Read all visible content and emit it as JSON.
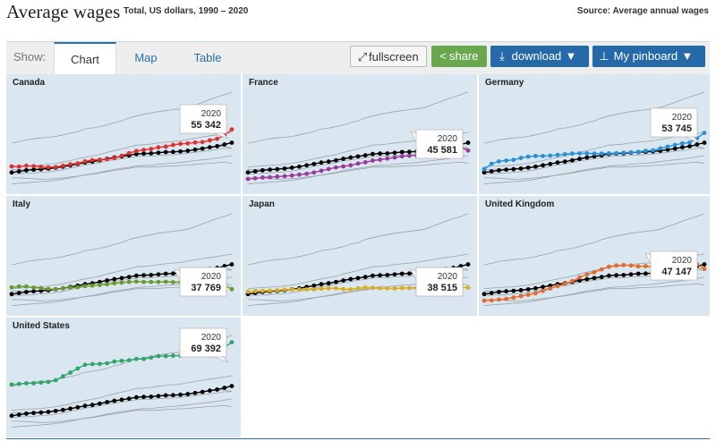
{
  "header": {
    "title": "Average wages",
    "subtitle": "Total, US dollars, 1990 – 2020",
    "source": "Source: Average annual wages"
  },
  "toolbar": {
    "show_label": "Show:",
    "tabs": [
      {
        "label": "Chart",
        "active": true
      },
      {
        "label": "Map",
        "active": false
      },
      {
        "label": "Table",
        "active": false
      }
    ],
    "fullscreen_label": "fullscreen",
    "share_label": "share",
    "download_label": "download",
    "pinboard_label": "My pinboard",
    "fullscreen_icon": "expand-arrows-icon",
    "share_icon": "share-nodes-icon",
    "download_icon": "download-arrow-icon",
    "pin_icon": "pushpin-icon",
    "dropdown_icon": "caret-down-icon"
  },
  "colors": {
    "oecd_line": "#000000",
    "background_lines": "#9aa3aa",
    "panel_bg": "#dae7f0",
    "canada": "#e0302f",
    "france": "#9b3a9b",
    "germany": "#2a8fd4",
    "italy": "#6b9a2c",
    "japan": "#d9ae1c",
    "united_kingdom": "#e56a2c",
    "united_states": "#2fa56c"
  },
  "chart_data": {
    "type": "line",
    "x": [
      1990,
      1991,
      1992,
      1993,
      1994,
      1995,
      1996,
      1997,
      1998,
      1999,
      2000,
      2001,
      2002,
      2003,
      2004,
      2005,
      2006,
      2007,
      2008,
      2009,
      2010,
      2011,
      2012,
      2013,
      2014,
      2015,
      2016,
      2017,
      2018,
      2019,
      2020
    ],
    "ylim": [
      28000,
      75000
    ],
    "benchmark": {
      "values": [
        35500,
        36000,
        36500,
        36800,
        37000,
        37300,
        37700,
        38200,
        38800,
        39400,
        40100,
        40500,
        41100,
        41800,
        42400,
        42900,
        43400,
        44000,
        44200,
        44300,
        44600,
        44900,
        45000,
        45200,
        45500,
        46000,
        46500,
        47100,
        47600,
        48400,
        49200
      ]
    },
    "background_series": [
      {
        "values": [
          49000,
          49700,
          50500,
          51000,
          51400,
          51700,
          52100,
          52800,
          53600,
          54400,
          55600,
          56000,
          56600,
          57400,
          58500,
          59300,
          60600,
          61500,
          62300,
          62900,
          63600,
          64000,
          64500,
          64800,
          65400,
          66600,
          67800,
          69100,
          70300,
          71300,
          72600
        ]
      },
      {
        "values": [
          38000,
          38300,
          38500,
          38700,
          38900,
          39300,
          39700,
          40300,
          41000,
          41800,
          42500,
          43100,
          43800,
          44800,
          45600,
          46400,
          47200,
          48100,
          48300,
          48600,
          49100,
          49500,
          49800,
          50100,
          50700,
          51300,
          51900,
          52400,
          52800,
          53400,
          54000
        ]
      },
      {
        "values": [
          34800,
          35000,
          35100,
          35300,
          35600,
          35800,
          36200,
          36800,
          37600,
          38300,
          39000,
          39400,
          40100,
          40900,
          41300,
          41800,
          42300,
          42900,
          43100,
          43100,
          43400,
          43600,
          43700,
          44000,
          44400,
          44800,
          45300,
          45600,
          46100,
          46600,
          46600
        ]
      },
      {
        "values": [
          30200,
          30500,
          30800,
          31000,
          31300,
          31600,
          31900,
          32400,
          33000,
          33700,
          34400,
          34900,
          35500,
          36300,
          36900,
          37400,
          37900,
          38500,
          38800,
          38900,
          39300,
          39600,
          39800,
          40100,
          40500,
          41000,
          41300,
          41700,
          42200,
          42700,
          43300
        ]
      },
      {
        "values": [
          33000,
          33000,
          32800,
          32600,
          32400,
          32500,
          32700,
          33000,
          33400,
          33800,
          34300,
          34700,
          35200,
          35900,
          36400,
          36900,
          37400,
          38000,
          38000,
          38000,
          38200,
          38400,
          38500,
          38700,
          38900,
          39200,
          39500,
          39800,
          40000,
          40300,
          39700
        ]
      },
      {
        "values": [
          36800,
          36900,
          37000,
          37100,
          37300,
          37600,
          37900,
          38300,
          38900,
          39500,
          40100,
          40700,
          41300,
          42000,
          42500,
          43100,
          43600,
          44200,
          44400,
          44500,
          44700,
          45000,
          45100,
          45400,
          45700,
          46100,
          46500,
          46900,
          47300,
          47500,
          46700
        ]
      }
    ],
    "series": [
      {
        "name": "Canada",
        "values": [
          38300,
          38200,
          38600,
          38400,
          38100,
          37900,
          38000,
          38600,
          39300,
          39700,
          40600,
          41200,
          41400,
          41600,
          42100,
          43200,
          44400,
          45400,
          45900,
          46300,
          47100,
          47400,
          48200,
          48700,
          48900,
          49300,
          49500,
          50300,
          51000,
          52600,
          55342
        ]
      },
      {
        "name": "France",
        "values": [
          32500,
          32800,
          33200,
          33300,
          33600,
          33800,
          34100,
          34500,
          34900,
          35500,
          36300,
          37100,
          37800,
          38300,
          38800,
          39600,
          40200,
          41000,
          41400,
          41900,
          42400,
          42900,
          43200,
          43300,
          43600,
          43800,
          44200,
          44600,
          45100,
          47200,
          45581
        ]
      },
      {
        "name": "Germany",
        "values": [
          37000,
          39500,
          40600,
          41000,
          41300,
          42200,
          42800,
          43100,
          43100,
          43300,
          43600,
          43900,
          44200,
          44300,
          44300,
          44200,
          44200,
          44300,
          44400,
          44600,
          44800,
          45000,
          45500,
          45700,
          46600,
          47400,
          48200,
          48900,
          49300,
          51300,
          53745
        ]
      },
      {
        "name": "Italy",
        "values": [
          38600,
          39000,
          39000,
          38500,
          38300,
          37900,
          37600,
          38200,
          38500,
          38700,
          39200,
          39400,
          39700,
          40000,
          40500,
          40800,
          41100,
          41300,
          41100,
          41100,
          41100,
          41200,
          41000,
          41000,
          40900,
          41300,
          41100,
          40400,
          40200,
          39700,
          37769
        ]
      },
      {
        "name": "Japan",
        "values": [
          36600,
          36900,
          37000,
          37100,
          37300,
          37600,
          37600,
          37700,
          37700,
          37700,
          38000,
          38200,
          38200,
          37800,
          37700,
          38200,
          38500,
          38400,
          38200,
          38200,
          38100,
          38300,
          38300,
          38200,
          37900,
          38000,
          38300,
          38600,
          38500,
          38600,
          38515
        ]
      },
      {
        "name": "United Kingdom",
        "values": [
          32500,
          32600,
          33000,
          33300,
          33900,
          34600,
          35200,
          35900,
          37000,
          38100,
          39200,
          40300,
          41500,
          43200,
          44600,
          45600,
          46900,
          48100,
          48700,
          48900,
          48700,
          48300,
          48400,
          48000,
          47900,
          48400,
          48800,
          48800,
          48500,
          49300,
          47147
        ]
      },
      {
        "name": "United States",
        "values": [
          49900,
          50200,
          50500,
          50500,
          50800,
          51100,
          51900,
          53700,
          55400,
          57300,
          59000,
          59300,
          59400,
          59700,
          60500,
          60800,
          61100,
          61700,
          61700,
          62300,
          63000,
          63000,
          63200,
          63200,
          63600,
          64400,
          65100,
          65700,
          66400,
          67000,
          69392
        ]
      }
    ],
    "callouts": [
      {
        "year": "2020",
        "value": "55 342"
      },
      {
        "year": "2020",
        "value": "45 581"
      },
      {
        "year": "2020",
        "value": "53 745"
      },
      {
        "year": "2020",
        "value": "37 769"
      },
      {
        "year": "2020",
        "value": "38 515"
      },
      {
        "year": "2020",
        "value": "47 147"
      },
      {
        "year": "2020",
        "value": "69 392"
      }
    ]
  }
}
